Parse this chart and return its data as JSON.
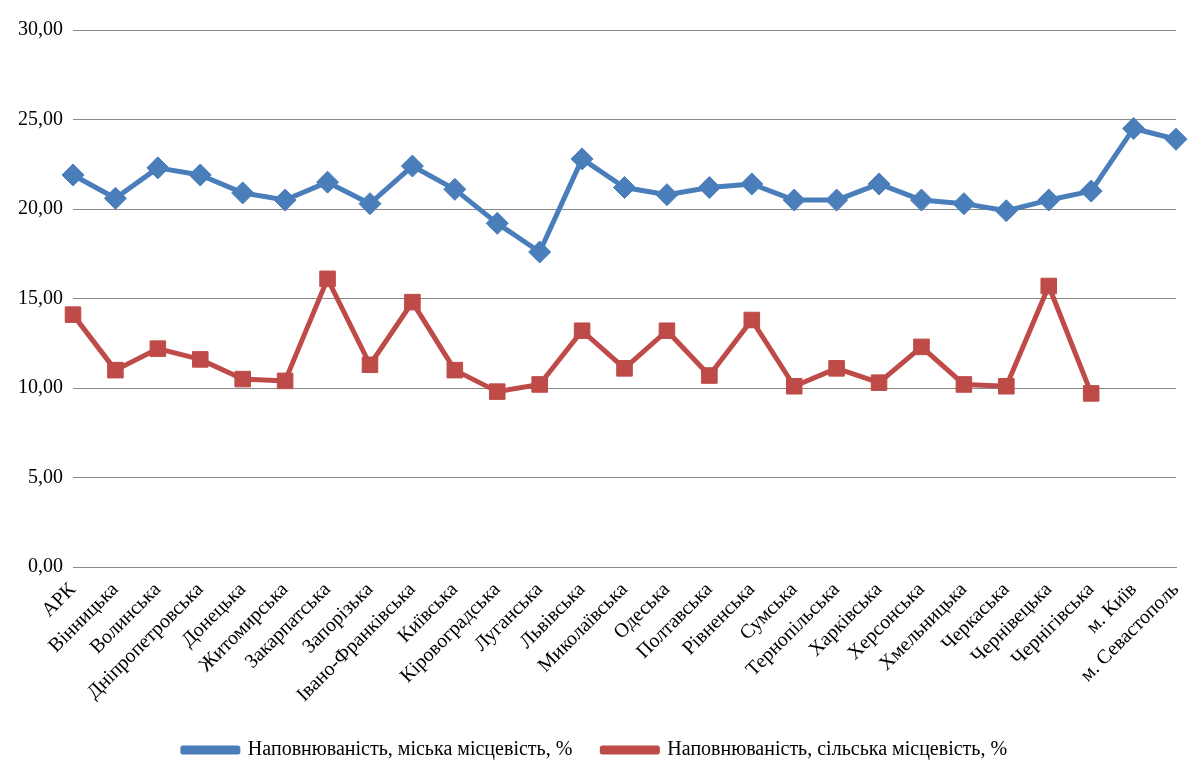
{
  "chart_data": {
    "type": "line",
    "categories": [
      "АРК",
      "Вінницька",
      "Волинська",
      "Дніпропетровська",
      "Донецька",
      "Житомирська",
      "Закарпатська",
      "Запорізька",
      "Івано-Франківська",
      "Київська",
      "Кіровоградська",
      "Луганська",
      "Львівська",
      "Миколаївська",
      "Одеська",
      "Полтавська",
      "Рівненська",
      "Сумська",
      "Тернопільська",
      "Харківська",
      "Херсонська",
      "Хмельницька",
      "Черкаська",
      "Чернівецька",
      "Чернігівська",
      "м. Київ",
      "м. Севастополь"
    ],
    "series": [
      {
        "name": "Наповнюваність, міська місцевість, %",
        "color": "#4a7ebb",
        "marker": "diamond",
        "values": [
          21.9,
          20.6,
          22.3,
          21.9,
          20.9,
          20.5,
          21.5,
          20.3,
          22.4,
          21.1,
          19.2,
          17.6,
          22.8,
          21.2,
          20.8,
          21.2,
          21.4,
          20.5,
          20.5,
          21.4,
          20.5,
          20.3,
          19.9,
          20.5,
          21.0,
          24.5,
          23.9
        ]
      },
      {
        "name": "Наповнюваність, сільська місцевість, %",
        "color": "#be4b48",
        "marker": "square",
        "values": [
          14.1,
          11.0,
          12.2,
          11.6,
          10.5,
          10.4,
          16.1,
          11.3,
          14.8,
          11.0,
          9.8,
          10.2,
          13.2,
          11.1,
          13.2,
          10.7,
          13.8,
          10.1,
          11.1,
          10.3,
          12.3,
          10.2,
          10.1,
          15.7,
          9.7,
          null,
          null
        ]
      }
    ],
    "ylim": [
      0,
      30
    ],
    "yticks": [
      {
        "value": 0,
        "label": "0,00"
      },
      {
        "value": 5,
        "label": "5,00"
      },
      {
        "value": 10,
        "label": "10,00"
      },
      {
        "value": 15,
        "label": "15,00"
      },
      {
        "value": 20,
        "label": "20,00"
      },
      {
        "value": 25,
        "label": "25,00"
      },
      {
        "value": 30,
        "label": "30,00"
      }
    ],
    "grid": "y",
    "legend": "bottom",
    "line_style": "solid"
  }
}
